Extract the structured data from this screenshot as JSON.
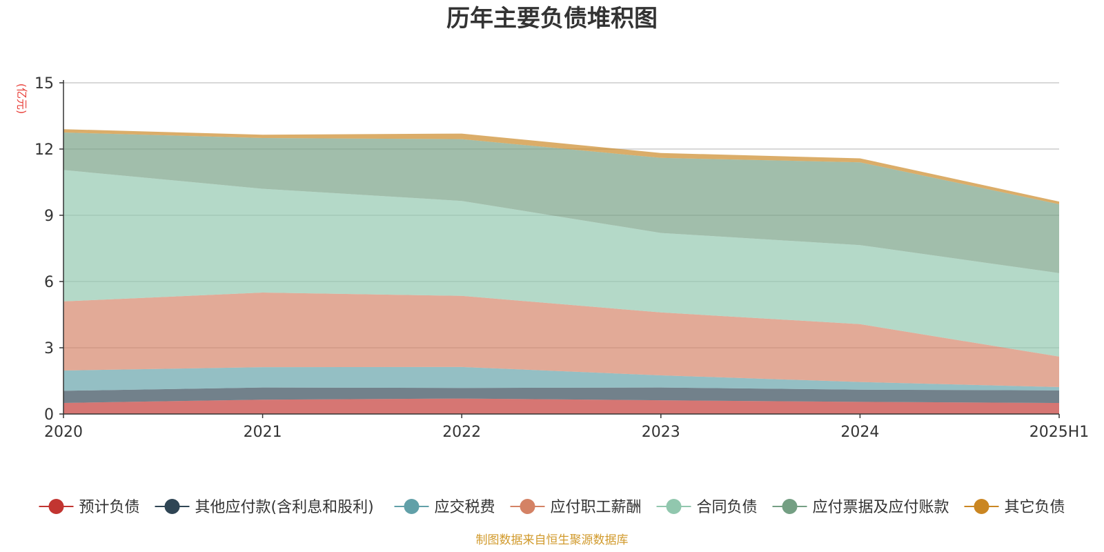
{
  "chart_data": {
    "type": "area",
    "stacked": true,
    "title": "历年主要负债堆积图",
    "unit_label": "(亿元)",
    "x": [
      "2020",
      "2021",
      "2022",
      "2023",
      "2024",
      "2025H1"
    ],
    "ylim": [
      0,
      15
    ],
    "yticks": [
      0,
      3,
      6,
      9,
      12,
      15
    ],
    "grid": true,
    "legend_position": "bottom",
    "series": [
      {
        "name": "预计负债",
        "color": "#c23531",
        "values": [
          0.5,
          0.65,
          0.7,
          0.62,
          0.55,
          0.5
        ]
      },
      {
        "name": "其他应付款(含利息和股利)",
        "color": "#2f4554",
        "values": [
          0.55,
          0.55,
          0.48,
          0.58,
          0.55,
          0.57
        ]
      },
      {
        "name": "应交税费",
        "color": "#61a0a8",
        "values": [
          0.92,
          0.92,
          0.95,
          0.55,
          0.35,
          0.15
        ]
      },
      {
        "name": "应付职工薪酬",
        "color": "#d48265",
        "values": [
          3.13,
          3.38,
          3.22,
          2.85,
          2.62,
          1.38
        ]
      },
      {
        "name": "合同负债",
        "color": "#91c7ae",
        "values": [
          5.95,
          4.7,
          4.3,
          3.6,
          3.58,
          3.78
        ]
      },
      {
        "name": "应付票据及应付账款",
        "color": "#749f83",
        "values": [
          1.7,
          2.3,
          2.8,
          3.4,
          3.75,
          3.12
        ]
      },
      {
        "name": "其它负债",
        "color": "#ca8622",
        "values": [
          0.15,
          0.15,
          0.25,
          0.22,
          0.18,
          0.12
        ]
      }
    ],
    "source": "制图数据来自恒生聚源数据库"
  }
}
